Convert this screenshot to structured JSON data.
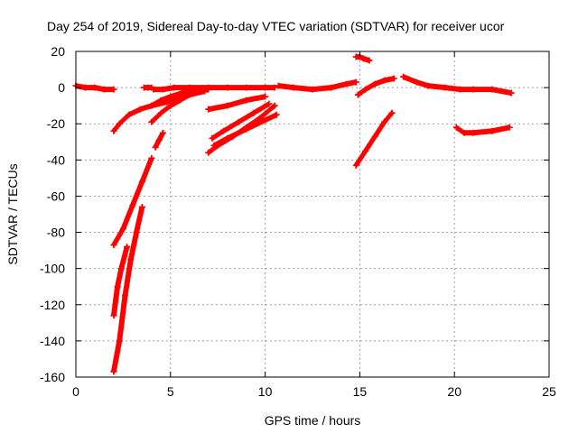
{
  "chart_data": {
    "type": "scatter",
    "title": "Day 254 of 2019, Sidereal Day-to-day VTEC variation (SDTVAR) for receiver ucor",
    "xlabel": "GPS time / hours",
    "ylabel": "SDTVAR / TECUs",
    "xlim": [
      0,
      25
    ],
    "ylim": [
      -160,
      20
    ],
    "xticks": [
      0,
      5,
      10,
      15,
      20,
      25
    ],
    "yticks": [
      20,
      0,
      -20,
      -40,
      -60,
      -80,
      -100,
      -120,
      -140,
      -160
    ],
    "grid": true,
    "legend": "none",
    "color": "#ff0000",
    "series": [
      {
        "x": [
          0.0,
          0.5,
          1.0,
          1.5,
          2.0
        ],
        "y": [
          1,
          0,
          0,
          -1,
          -1
        ]
      },
      {
        "x": [
          3.6,
          3.8,
          4.0
        ],
        "y": [
          0,
          0,
          0
        ]
      },
      {
        "x": [
          4.1,
          4.6,
          5.2,
          6.0,
          7.0,
          8.0,
          9.0,
          10.0,
          10.5
        ],
        "y": [
          -1,
          -1,
          0,
          0,
          0,
          0,
          0,
          0,
          0
        ]
      },
      {
        "x": [
          10.7,
          11.5,
          12.5,
          13.5,
          14.3,
          14.8
        ],
        "y": [
          1,
          0,
          -1,
          0,
          2,
          3
        ]
      },
      {
        "x": [
          14.8,
          15.0,
          15.2,
          15.5
        ],
        "y": [
          17,
          17,
          16,
          15
        ]
      },
      {
        "x": [
          14.9,
          15.3,
          15.8,
          16.3,
          16.8
        ],
        "y": [
          -4,
          -1,
          2,
          4,
          5
        ]
      },
      {
        "x": [
          17.3,
          18.0,
          18.6,
          19.5,
          20.3,
          21.0,
          22.0,
          23.0
        ],
        "y": [
          6,
          3,
          1,
          0,
          -1,
          -1,
          -1,
          -3
        ]
      },
      {
        "x": [
          2.0,
          2.3,
          2.8,
          3.4,
          4.0,
          4.8,
          5.5,
          6.2,
          7.0
        ],
        "y": [
          -24,
          -20,
          -15,
          -12,
          -10,
          -8,
          -5,
          -3,
          -1
        ]
      },
      {
        "x": [
          4.0,
          4.5,
          5.0,
          5.5,
          6.0,
          6.8
        ],
        "y": [
          -19,
          -14,
          -10,
          -7,
          -4,
          -2
        ]
      },
      {
        "x": [
          4.0,
          4.5,
          5.0,
          5.6,
          6.2
        ],
        "y": [
          -10,
          -7,
          -5,
          -3,
          -1
        ]
      },
      {
        "x": [
          7.0,
          8.0,
          9.0,
          10.0
        ],
        "y": [
          -12,
          -10,
          -7,
          -5
        ]
      },
      {
        "x": [
          7.0,
          7.5,
          8.3,
          9.0,
          9.7,
          10.5
        ],
        "y": [
          -36,
          -32,
          -27,
          -22,
          -17,
          -10
        ]
      },
      {
        "x": [
          7.2,
          7.8,
          8.6,
          9.4,
          10.2
        ],
        "y": [
          -28,
          -24,
          -19,
          -14,
          -9
        ]
      },
      {
        "x": [
          7.3,
          8.0,
          9.0,
          10.0,
          10.6
        ],
        "y": [
          -32,
          -28,
          -23,
          -18,
          -15
        ]
      },
      {
        "x": [
          2.0,
          2.5,
          3.0,
          3.5,
          4.0
        ],
        "y": [
          -87,
          -78,
          -65,
          -52,
          -39
        ]
      },
      {
        "x": [
          4.2,
          4.4,
          4.6
        ],
        "y": [
          -33,
          -29,
          -25
        ]
      },
      {
        "x": [
          2.0,
          2.2,
          2.4,
          2.7
        ],
        "y": [
          -126,
          -110,
          -100,
          -88
        ]
      },
      {
        "x": [
          2.0,
          2.3,
          2.6,
          2.9,
          3.2,
          3.5
        ],
        "y": [
          -157,
          -140,
          -115,
          -95,
          -80,
          -66
        ]
      },
      {
        "x": [
          14.8,
          15.3,
          15.8,
          16.3,
          16.7
        ],
        "y": [
          -43,
          -35,
          -27,
          -19,
          -14
        ]
      },
      {
        "x": [
          20.1,
          20.5,
          21.0,
          22.0,
          22.9
        ],
        "y": [
          -22,
          -25,
          -25,
          -24,
          -22
        ]
      }
    ]
  }
}
